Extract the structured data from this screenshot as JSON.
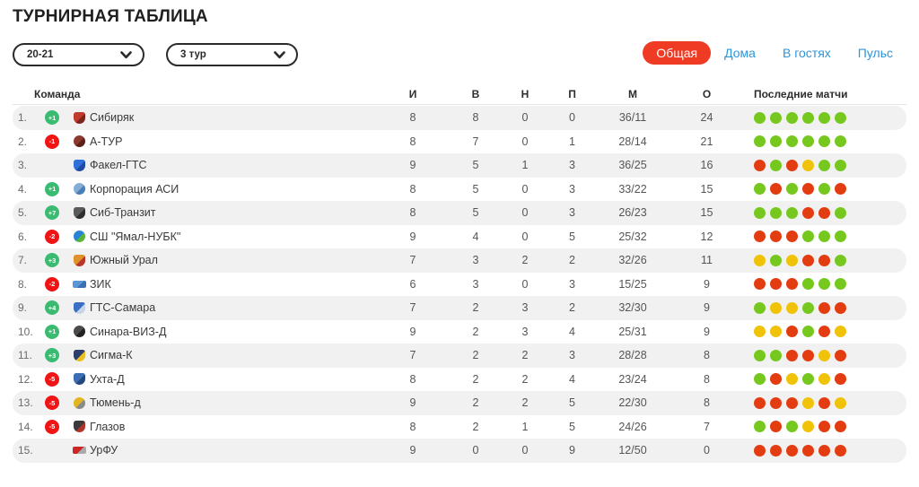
{
  "page": {
    "title": "ТУРНИРНАЯ ТАБЛИЦА"
  },
  "filters": {
    "season": {
      "value": "20-21"
    },
    "round": {
      "value": "3 тур"
    }
  },
  "tabs": [
    {
      "label": "Общая",
      "active": true
    },
    {
      "label": "Дома",
      "active": false
    },
    {
      "label": "В гостях",
      "active": false
    },
    {
      "label": "Пульс",
      "active": false
    }
  ],
  "colors": {
    "accent_red": "#ef3a24",
    "tab_blue": "#2e96d8",
    "badge_green": "#3bbb72",
    "badge_red": "#f01414",
    "dot_green": "#76c81e",
    "dot_red": "#e23c10",
    "dot_yellow": "#f0c208"
  },
  "table": {
    "columns": {
      "team": "Команда",
      "played": "И",
      "wins": "В",
      "draws": "Н",
      "losses": "П",
      "goals": "М",
      "points": "О",
      "last": "Последние матчи"
    },
    "rows": [
      {
        "pos": "1.",
        "delta": "+1",
        "dir": "up",
        "team": "Сибиряк",
        "icon": [
          "#c13a2b",
          "#7e241c"
        ],
        "shape": "shield",
        "i": "8",
        "v": "8",
        "n": "0",
        "p": "0",
        "m": "36/11",
        "o": "24",
        "last": [
          "g",
          "g",
          "g",
          "g",
          "g",
          "g"
        ]
      },
      {
        "pos": "2.",
        "delta": "-1",
        "dir": "down",
        "team": "А-ТУР",
        "icon": [
          "#8c3a30",
          "#5d211b"
        ],
        "shape": "circle",
        "i": "8",
        "v": "7",
        "n": "0",
        "p": "1",
        "m": "28/14",
        "o": "21",
        "last": [
          "g",
          "g",
          "g",
          "g",
          "g",
          "g"
        ]
      },
      {
        "pos": "3.",
        "delta": "",
        "dir": "none",
        "team": "Факел-ГТС",
        "icon": [
          "#2f6fd9",
          "#1c4da3"
        ],
        "shape": "shield",
        "i": "9",
        "v": "5",
        "n": "1",
        "p": "3",
        "m": "36/25",
        "o": "16",
        "last": [
          "r",
          "g",
          "r",
          "y",
          "g",
          "g"
        ]
      },
      {
        "pos": "4.",
        "delta": "+1",
        "dir": "up",
        "team": "Корпорация АСИ",
        "icon": [
          "#85aed6",
          "#4a7fb5"
        ],
        "shape": "circle",
        "i": "8",
        "v": "5",
        "n": "0",
        "p": "3",
        "m": "33/22",
        "o": "15",
        "last": [
          "g",
          "r",
          "g",
          "r",
          "g",
          "r"
        ]
      },
      {
        "pos": "5.",
        "delta": "+7",
        "dir": "up",
        "team": "Сиб-Транзит",
        "icon": [
          "#5a5a5a",
          "#2e2e2e"
        ],
        "shape": "shield",
        "i": "8",
        "v": "5",
        "n": "0",
        "p": "3",
        "m": "26/23",
        "o": "15",
        "last": [
          "g",
          "g",
          "g",
          "r",
          "r",
          "g"
        ]
      },
      {
        "pos": "6.",
        "delta": "-2",
        "dir": "down",
        "team": "СШ \"Ямал-НУБК\"",
        "icon": [
          "#2a84d4",
          "#57b33c"
        ],
        "shape": "circle",
        "i": "9",
        "v": "4",
        "n": "0",
        "p": "5",
        "m": "25/32",
        "o": "12",
        "last": [
          "r",
          "r",
          "r",
          "g",
          "g",
          "g"
        ]
      },
      {
        "pos": "7.",
        "delta": "+3",
        "dir": "up",
        "team": "Южный Урал",
        "icon": [
          "#e0912a",
          "#b9352a"
        ],
        "shape": "shield",
        "i": "7",
        "v": "3",
        "n": "2",
        "p": "2",
        "m": "32/26",
        "o": "11",
        "last": [
          "y",
          "g",
          "y",
          "r",
          "r",
          "g"
        ]
      },
      {
        "pos": "8.",
        "delta": "-2",
        "dir": "down",
        "team": "ЗИК",
        "icon": [
          "#5b97d8",
          "#3c6fb0"
        ],
        "shape": "mark",
        "i": "6",
        "v": "3",
        "n": "0",
        "p": "3",
        "m": "15/25",
        "o": "9",
        "last": [
          "r",
          "r",
          "r",
          "g",
          "g",
          "g"
        ]
      },
      {
        "pos": "9.",
        "delta": "+4",
        "dir": "up",
        "team": "ГТС-Самара",
        "icon": [
          "#3a6fc4",
          "#c8d4ea"
        ],
        "shape": "shield",
        "i": "7",
        "v": "2",
        "n": "3",
        "p": "2",
        "m": "32/30",
        "o": "9",
        "last": [
          "g",
          "y",
          "y",
          "g",
          "r",
          "r"
        ]
      },
      {
        "pos": "10.",
        "delta": "+1",
        "dir": "up",
        "team": "Синара-ВИЗ-Д",
        "icon": [
          "#4a4a4a",
          "#222222"
        ],
        "shape": "circle",
        "i": "9",
        "v": "2",
        "n": "3",
        "p": "4",
        "m": "25/31",
        "o": "9",
        "last": [
          "y",
          "y",
          "r",
          "g",
          "r",
          "y"
        ]
      },
      {
        "pos": "11.",
        "delta": "+3",
        "dir": "up",
        "team": "Сигма-К",
        "icon": [
          "#2c3e6b",
          "#e8bf1e"
        ],
        "shape": "shield",
        "i": "7",
        "v": "2",
        "n": "2",
        "p": "3",
        "m": "28/28",
        "o": "8",
        "last": [
          "g",
          "g",
          "r",
          "r",
          "y",
          "r"
        ]
      },
      {
        "pos": "12.",
        "delta": "-5",
        "dir": "down",
        "team": "Ухта-Д",
        "icon": [
          "#3b6fb5",
          "#24477d"
        ],
        "shape": "shield",
        "i": "8",
        "v": "2",
        "n": "2",
        "p": "4",
        "m": "23/24",
        "o": "8",
        "last": [
          "g",
          "r",
          "y",
          "g",
          "y",
          "r"
        ]
      },
      {
        "pos": "13.",
        "delta": "-5",
        "dir": "down",
        "team": "Тюмень-д",
        "icon": [
          "#e4b51e",
          "#8a8a8a"
        ],
        "shape": "circle",
        "i": "9",
        "v": "2",
        "n": "2",
        "p": "5",
        "m": "22/30",
        "o": "8",
        "last": [
          "r",
          "r",
          "r",
          "y",
          "r",
          "y"
        ]
      },
      {
        "pos": "14.",
        "delta": "-5",
        "dir": "down",
        "team": "Глазов",
        "icon": [
          "#3a3a3a",
          "#b03228"
        ],
        "shape": "shield",
        "i": "8",
        "v": "2",
        "n": "1",
        "p": "5",
        "m": "24/26",
        "o": "7",
        "last": [
          "g",
          "r",
          "g",
          "y",
          "r",
          "r"
        ]
      },
      {
        "pos": "15.",
        "delta": "",
        "dir": "none",
        "team": "УрФУ",
        "icon": [
          "#cc2525",
          "#aaaaaa"
        ],
        "shape": "mark",
        "i": "9",
        "v": "0",
        "n": "0",
        "p": "9",
        "m": "12/50",
        "o": "0",
        "last": [
          "r",
          "r",
          "r",
          "r",
          "r",
          "r"
        ]
      }
    ]
  }
}
